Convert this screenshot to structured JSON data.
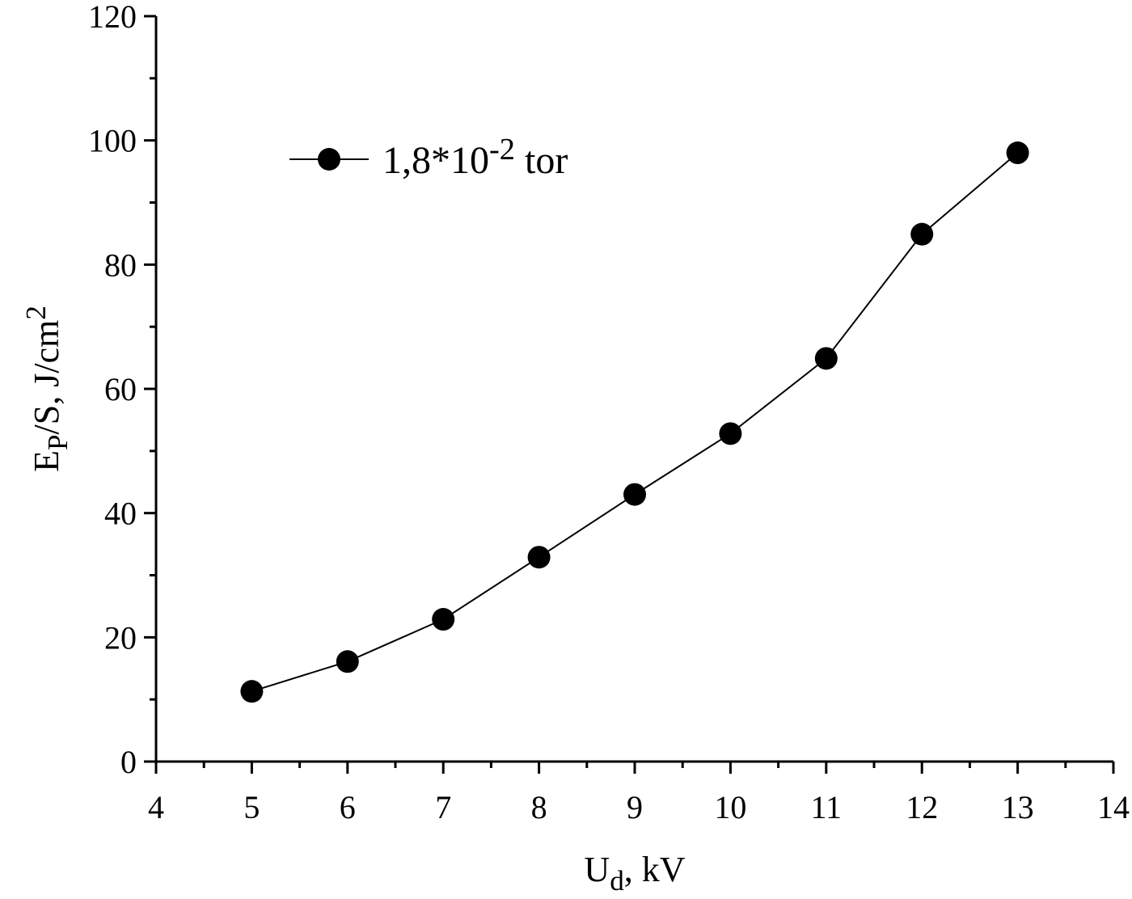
{
  "chart_data": {
    "type": "line",
    "xlabel": [
      "U",
      "d",
      ", kV"
    ],
    "ylabel": [
      "E",
      "P",
      "/S, J/cm",
      "2"
    ],
    "x": [
      5,
      6,
      7,
      8,
      9,
      10,
      11,
      12,
      13
    ],
    "series": [
      {
        "name": [
          "1,8*10",
          "-2",
          " tor"
        ],
        "color": "#000000",
        "values": [
          11.3,
          16.1,
          22.9,
          32.9,
          43,
          52.8,
          64.9,
          84.9,
          98
        ]
      }
    ],
    "xlim": [
      4,
      14
    ],
    "xticks": [
      4,
      5,
      6,
      7,
      8,
      9,
      10,
      11,
      12,
      13,
      14
    ],
    "ylim": [
      0,
      120
    ],
    "yticks": [
      0,
      20,
      40,
      60,
      80,
      100,
      120
    ],
    "legend": "upper left",
    "grid": false
  }
}
